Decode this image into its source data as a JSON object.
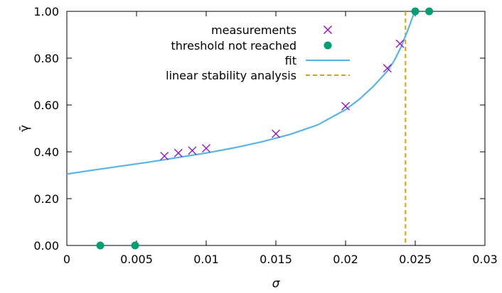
{
  "chart_data": {
    "type": "scatter",
    "title": "",
    "xlabel": "σ",
    "ylabel": "γ̄",
    "xlim": [
      0,
      0.03
    ],
    "ylim": [
      0,
      1.0
    ],
    "x_ticks": [
      "0",
      "0.005",
      "0.01",
      "0.015",
      "0.02",
      "0.025",
      "0.03"
    ],
    "y_ticks": [
      "0.00",
      "0.20",
      "0.40",
      "0.60",
      "0.80",
      "1.00"
    ],
    "grid": false,
    "legend_position": "top-center",
    "series": [
      {
        "name": "measurements",
        "marker": "x",
        "color": "#9400d3",
        "points": [
          [
            0.007,
            0.382
          ],
          [
            0.008,
            0.395
          ],
          [
            0.009,
            0.405
          ],
          [
            0.01,
            0.415
          ],
          [
            0.015,
            0.477
          ],
          [
            0.02,
            0.595
          ],
          [
            0.023,
            0.757
          ],
          [
            0.0239,
            0.862
          ]
        ]
      },
      {
        "name": "threshold not reached",
        "marker": "filled-circle",
        "color": "#009e73",
        "points": [
          [
            0.0024,
            0.0
          ],
          [
            0.0049,
            0.0
          ],
          [
            0.025,
            1.0
          ],
          [
            0.026,
            1.0
          ]
        ]
      },
      {
        "name": "fit",
        "style": "line",
        "color": "#56b4e9",
        "points": [
          [
            0.0,
            0.305
          ],
          [
            0.002,
            0.323
          ],
          [
            0.004,
            0.34
          ],
          [
            0.006,
            0.357
          ],
          [
            0.008,
            0.376
          ],
          [
            0.01,
            0.395
          ],
          [
            0.012,
            0.417
          ],
          [
            0.014,
            0.443
          ],
          [
            0.016,
            0.474
          ],
          [
            0.018,
            0.515
          ],
          [
            0.02,
            0.58
          ],
          [
            0.021,
            0.625
          ],
          [
            0.022,
            0.68
          ],
          [
            0.023,
            0.745
          ],
          [
            0.0235,
            0.79
          ],
          [
            0.024,
            0.85
          ],
          [
            0.0245,
            0.925
          ],
          [
            0.0249,
            0.99
          ],
          [
            0.025,
            1.0
          ]
        ]
      },
      {
        "name": "linear stability analysis",
        "style": "dashed-vertical",
        "color": "#e69f00",
        "x": 0.0243
      }
    ]
  }
}
